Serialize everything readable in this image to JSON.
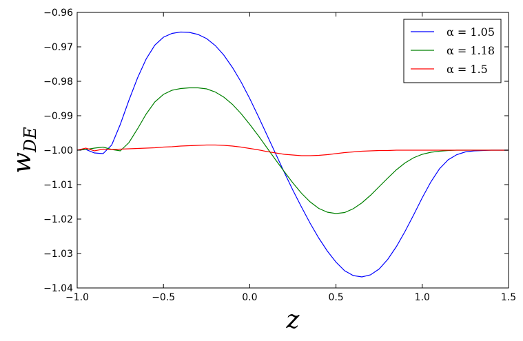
{
  "chart_data": {
    "type": "line",
    "xlabel": "z",
    "ylabel": "w",
    "ylabel_subscript": "DE",
    "x": [
      -1.0,
      -0.95,
      -0.9,
      -0.85,
      -0.8,
      -0.75,
      -0.7,
      -0.65,
      -0.6,
      -0.55,
      -0.5,
      -0.45,
      -0.4,
      -0.35,
      -0.3,
      -0.25,
      -0.2,
      -0.15,
      -0.1,
      -0.05,
      0.0,
      0.05,
      0.1,
      0.15,
      0.2,
      0.25,
      0.3,
      0.35,
      0.4,
      0.45,
      0.5,
      0.55,
      0.6,
      0.65,
      0.7,
      0.75,
      0.8,
      0.85,
      0.9,
      0.95,
      1.0,
      1.05,
      1.1,
      1.15,
      1.2,
      1.25,
      1.3,
      1.35,
      1.4,
      1.45,
      1.5
    ],
    "series": [
      {
        "name": "α = 1.05",
        "color": "#0000ff",
        "values": [
          -1.0,
          -0.9998,
          -1.0008,
          -1.001,
          -0.9985,
          -0.9925,
          -0.9855,
          -0.979,
          -0.9735,
          -0.9695,
          -0.9672,
          -0.9661,
          -0.9657,
          -0.9658,
          -0.9664,
          -0.9676,
          -0.9696,
          -0.9724,
          -0.976,
          -0.9802,
          -0.985,
          -0.9902,
          -0.9956,
          -1.001,
          -1.0064,
          -1.0116,
          -1.0165,
          -1.0212,
          -1.0255,
          -1.0293,
          -1.0325,
          -1.035,
          -1.0364,
          -1.0368,
          -1.0362,
          -1.0345,
          -1.0317,
          -1.028,
          -1.0236,
          -1.0188,
          -1.0138,
          -1.0092,
          -1.0054,
          -1.0028,
          -1.0013,
          -1.0005,
          -1.0002,
          -1.0001,
          -1.0,
          -1.0,
          -1.0
        ]
      },
      {
        "name": "α = 1.18",
        "color": "#008000",
        "values": [
          -1.0,
          -0.9998,
          -0.9994,
          -0.9991,
          -0.9998,
          -1.0002,
          -0.9978,
          -0.9938,
          -0.9895,
          -0.986,
          -0.9838,
          -0.9826,
          -0.9821,
          -0.9819,
          -0.9819,
          -0.9822,
          -0.9831,
          -0.9846,
          -0.9867,
          -0.9894,
          -0.9925,
          -0.9958,
          -0.9993,
          -1.0028,
          -1.0062,
          -1.0095,
          -1.0125,
          -1.015,
          -1.0169,
          -1.018,
          -1.0184,
          -1.0181,
          -1.017,
          -1.0153,
          -1.0131,
          -1.0106,
          -1.0081,
          -1.0057,
          -1.0037,
          -1.0022,
          -1.0012,
          -1.0006,
          -1.0003,
          -1.0001,
          -1.0,
          -1.0,
          -1.0,
          -1.0,
          -1.0,
          -1.0,
          -1.0
        ]
      },
      {
        "name": "α = 1.5",
        "color": "#ff0000",
        "values": [
          -1.0,
          -0.9994,
          -1.0002,
          -0.9997,
          -0.9998,
          -0.9997,
          -0.9996,
          -0.9995,
          -0.9994,
          -0.9993,
          -0.9991,
          -0.999,
          -0.9988,
          -0.9987,
          -0.9986,
          -0.9985,
          -0.9985,
          -0.9986,
          -0.9988,
          -0.9991,
          -0.9995,
          -0.9999,
          -1.0004,
          -1.0008,
          -1.0012,
          -1.0014,
          -1.0016,
          -1.0016,
          -1.0015,
          -1.0013,
          -1.001,
          -1.0007,
          -1.0005,
          -1.0003,
          -1.0002,
          -1.0001,
          -1.0001,
          -1.0,
          -1.0,
          -1.0,
          -1.0,
          -1.0,
          -1.0,
          -1.0,
          -1.0,
          -1.0,
          -1.0,
          -1.0,
          -1.0,
          -1.0,
          -1.0
        ]
      }
    ],
    "xlim": [
      -1.0,
      1.5
    ],
    "xticks": [
      {
        "value": -1.0,
        "label": "−1.0"
      },
      {
        "value": -0.5,
        "label": "−0.5"
      },
      {
        "value": 0.0,
        "label": "0.0"
      },
      0.5,
      {
        "value": 1.0,
        "label": "1.0"
      },
      1.5
    ],
    "ylim": [
      -1.04,
      -0.96
    ],
    "yticks": [
      {
        "value": -1.04,
        "label": "−1.04"
      },
      {
        "value": -1.03,
        "label": "−1.03"
      },
      {
        "value": -1.02,
        "label": "−1.02"
      },
      {
        "value": -1.01,
        "label": "−1.01"
      },
      {
        "value": -1.0,
        "label": "−1.00"
      },
      {
        "value": -0.99,
        "label": "−0.99"
      },
      {
        "value": -0.98,
        "label": "−0.98"
      },
      {
        "value": -0.97,
        "label": "−0.97"
      },
      {
        "value": -0.96,
        "label": "−0.96"
      }
    ],
    "grid": false,
    "legend": "upper right"
  }
}
